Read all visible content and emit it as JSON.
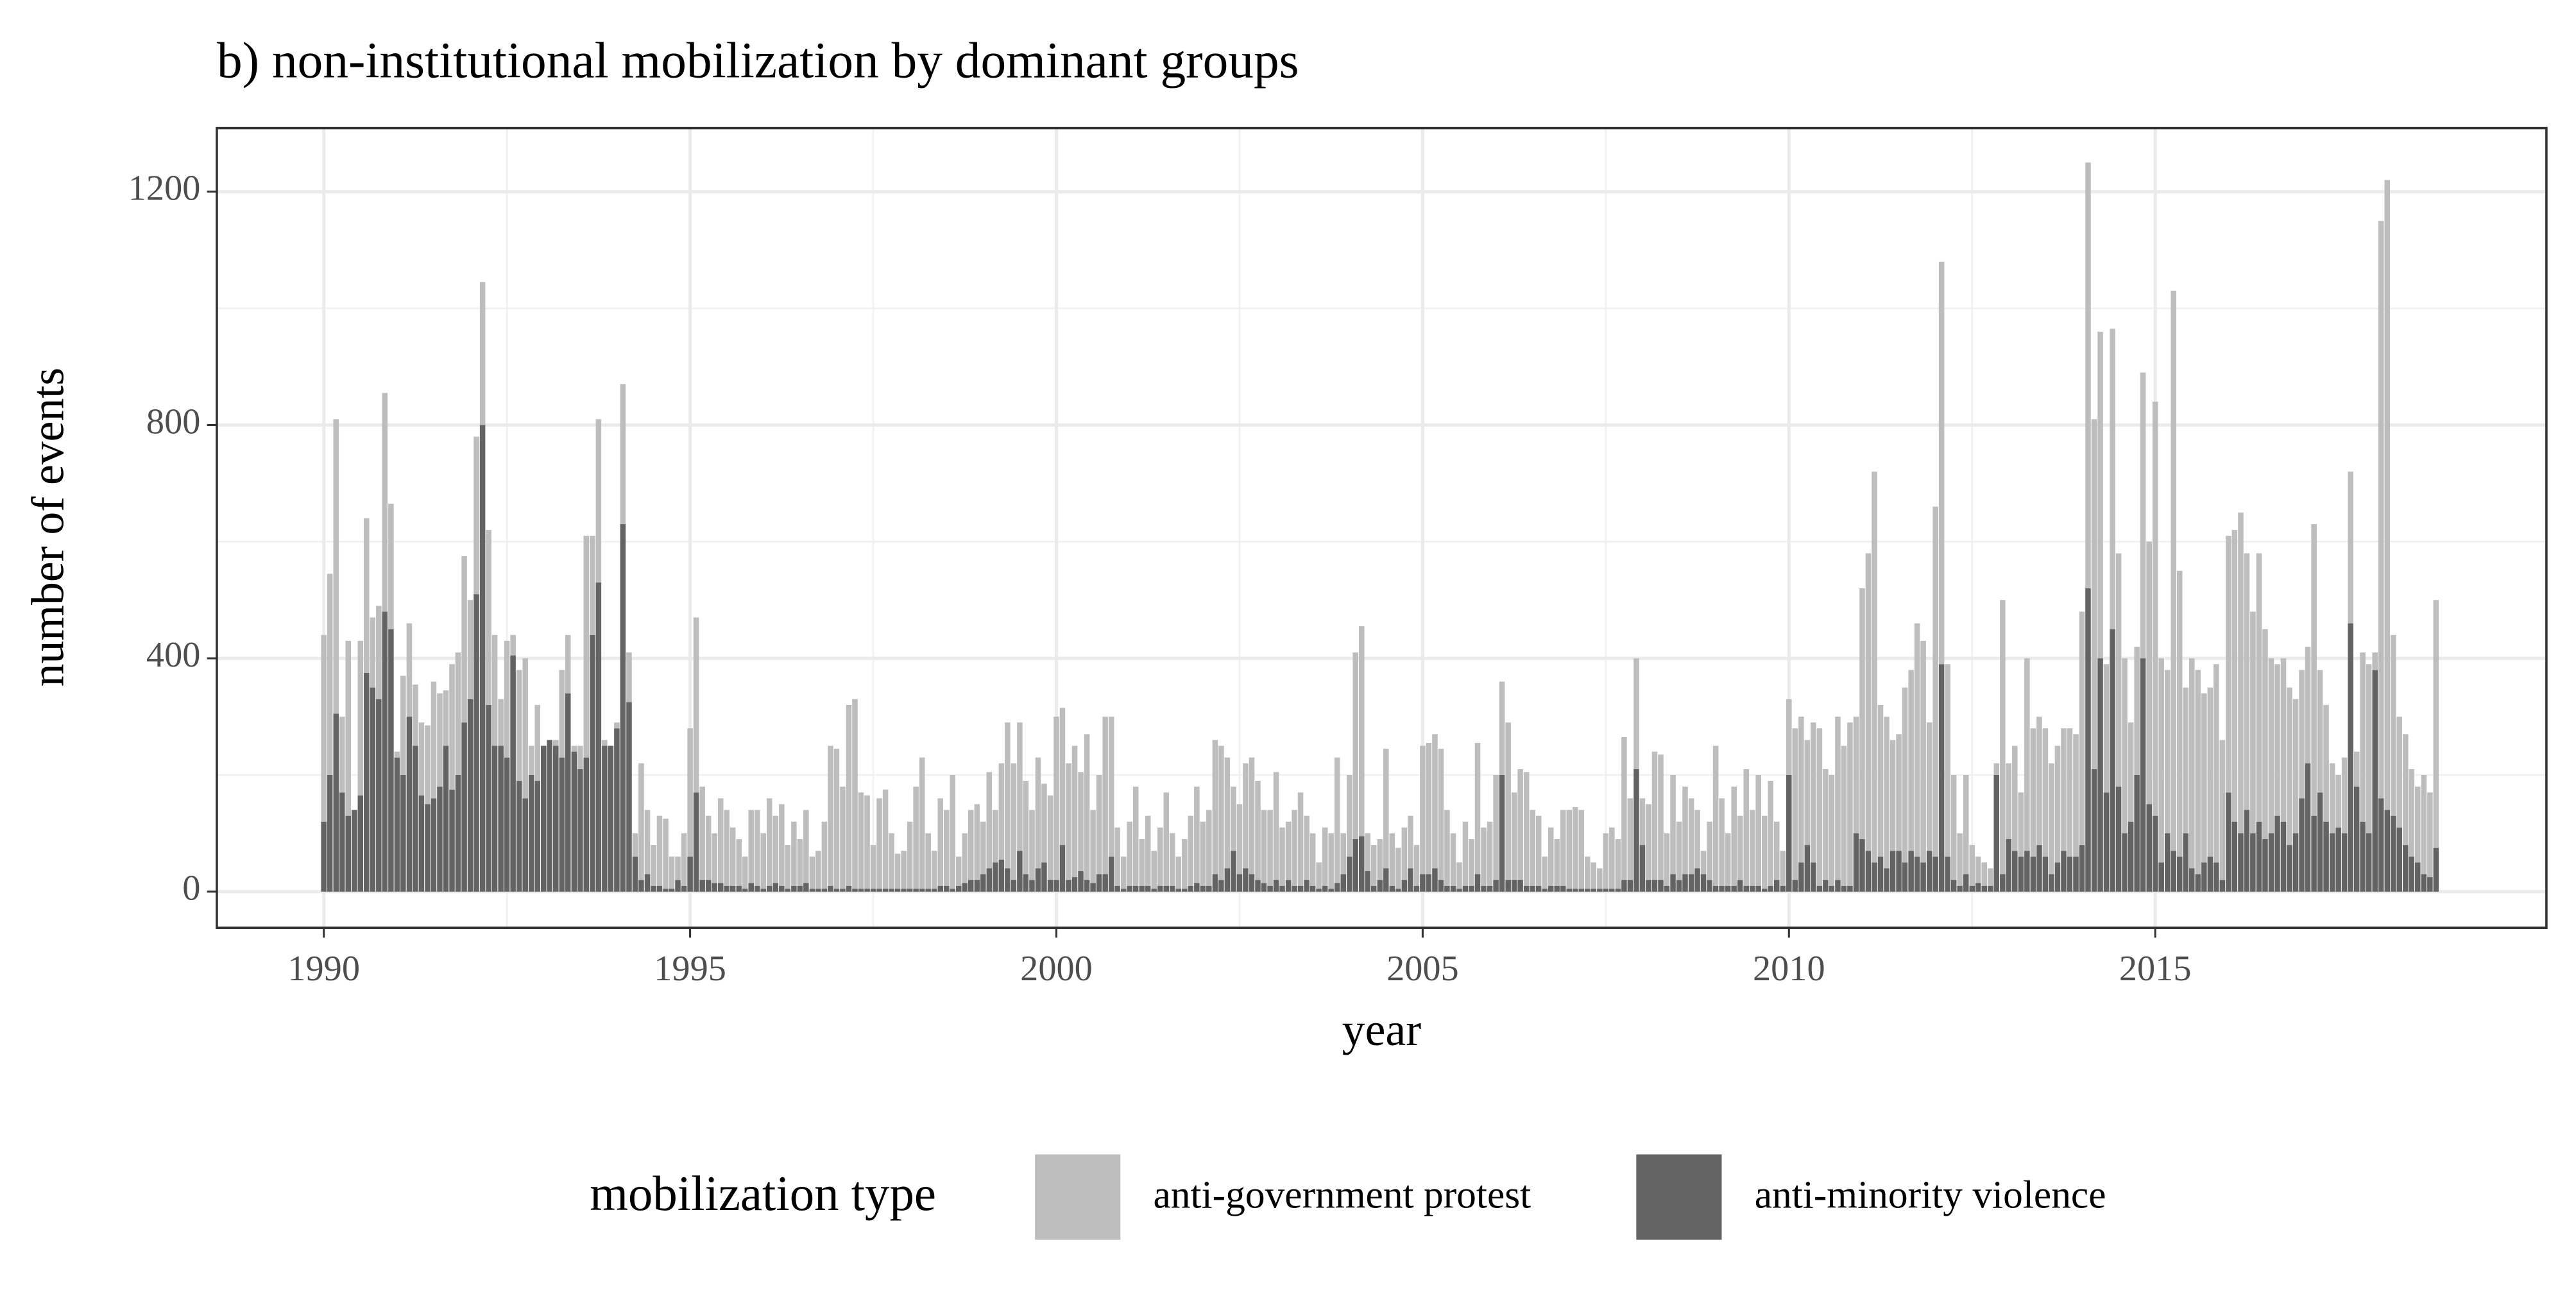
{
  "chart_data": {
    "type": "stacked_bar",
    "title": "b) non-institutional mobilization by dominant groups",
    "x_label": "year",
    "y_label": "number of events",
    "legend_title": "mobilization type",
    "legend": "bottom",
    "grid": true,
    "xlim": [
      1988.54,
      2020.34
    ],
    "xticks": [
      1990,
      1995,
      2000,
      2005,
      2010,
      2015
    ],
    "ylim": [
      -62,
      1309
    ],
    "yticks": [
      0,
      400,
      800,
      1200
    ],
    "x": [
      1990,
      1990.083,
      1990.167,
      1990.25,
      1990.333,
      1990.417,
      1990.5,
      1990.583,
      1990.667,
      1990.75,
      1990.833,
      1990.917,
      1991,
      1991.083,
      1991.167,
      1991.25,
      1991.333,
      1991.417,
      1991.5,
      1991.583,
      1991.667,
      1991.75,
      1991.833,
      1991.917,
      1992,
      1992.083,
      1992.167,
      1992.25,
      1992.333,
      1992.417,
      1992.5,
      1992.583,
      1992.667,
      1992.75,
      1992.833,
      1992.917,
      1993,
      1993.083,
      1993.167,
      1993.25,
      1993.333,
      1993.417,
      1993.5,
      1993.583,
      1993.667,
      1993.75,
      1993.833,
      1993.917,
      1994,
      1994.083,
      1994.167,
      1994.25,
      1994.333,
      1994.417,
      1994.5,
      1994.583,
      1994.667,
      1994.75,
      1994.833,
      1994.917,
      1995,
      1995.083,
      1995.167,
      1995.25,
      1995.333,
      1995.417,
      1995.5,
      1995.583,
      1995.667,
      1995.75,
      1995.833,
      1995.917,
      1996,
      1996.083,
      1996.167,
      1996.25,
      1996.333,
      1996.417,
      1996.5,
      1996.583,
      1996.667,
      1996.75,
      1996.833,
      1996.917,
      1997,
      1997.083,
      1997.167,
      1997.25,
      1997.333,
      1997.417,
      1997.5,
      1997.583,
      1997.667,
      1997.75,
      1997.833,
      1997.917,
      1998,
      1998.083,
      1998.167,
      1998.25,
      1998.333,
      1998.417,
      1998.5,
      1998.583,
      1998.667,
      1998.75,
      1998.833,
      1998.917,
      1999,
      1999.083,
      1999.167,
      1999.25,
      1999.333,
      1999.417,
      1999.5,
      1999.583,
      1999.667,
      1999.75,
      1999.833,
      1999.917,
      2000,
      2000.083,
      2000.167,
      2000.25,
      2000.333,
      2000.417,
      2000.5,
      2000.583,
      2000.667,
      2000.75,
      2000.833,
      2000.917,
      2001,
      2001.083,
      2001.167,
      2001.25,
      2001.333,
      2001.417,
      2001.5,
      2001.583,
      2001.667,
      2001.75,
      2001.833,
      2001.917,
      2002,
      2002.083,
      2002.167,
      2002.25,
      2002.333,
      2002.417,
      2002.5,
      2002.583,
      2002.667,
      2002.75,
      2002.833,
      2002.917,
      2003,
      2003.083,
      2003.167,
      2003.25,
      2003.333,
      2003.417,
      2003.5,
      2003.583,
      2003.667,
      2003.75,
      2003.833,
      2003.917,
      2004,
      2004.083,
      2004.167,
      2004.25,
      2004.333,
      2004.417,
      2004.5,
      2004.583,
      2004.667,
      2004.75,
      2004.833,
      2004.917,
      2005,
      2005.083,
      2005.167,
      2005.25,
      2005.333,
      2005.417,
      2005.5,
      2005.583,
      2005.667,
      2005.75,
      2005.833,
      2005.917,
      2006,
      2006.083,
      2006.167,
      2006.25,
      2006.333,
      2006.417,
      2006.5,
      2006.583,
      2006.667,
      2006.75,
      2006.833,
      2006.917,
      2007,
      2007.083,
      2007.167,
      2007.25,
      2007.333,
      2007.417,
      2007.5,
      2007.583,
      2007.667,
      2007.75,
      2007.833,
      2007.917,
      2008,
      2008.083,
      2008.167,
      2008.25,
      2008.333,
      2008.417,
      2008.5,
      2008.583,
      2008.667,
      2008.75,
      2008.833,
      2008.917,
      2009,
      2009.083,
      2009.167,
      2009.25,
      2009.333,
      2009.417,
      2009.5,
      2009.583,
      2009.667,
      2009.75,
      2009.833,
      2009.917,
      2010,
      2010.083,
      2010.167,
      2010.25,
      2010.333,
      2010.417,
      2010.5,
      2010.583,
      2010.667,
      2010.75,
      2010.833,
      2010.917,
      2011,
      2011.083,
      2011.167,
      2011.25,
      2011.333,
      2011.417,
      2011.5,
      2011.583,
      2011.667,
      2011.75,
      2011.833,
      2011.917,
      2012,
      2012.083,
      2012.167,
      2012.25,
      2012.333,
      2012.417,
      2012.5,
      2012.583,
      2012.667,
      2012.75,
      2012.833,
      2012.917,
      2013,
      2013.083,
      2013.167,
      2013.25,
      2013.333,
      2013.417,
      2013.5,
      2013.583,
      2013.667,
      2013.75,
      2013.833,
      2013.917,
      2014,
      2014.083,
      2014.167,
      2014.25,
      2014.333,
      2014.417,
      2014.5,
      2014.583,
      2014.667,
      2014.75,
      2014.833,
      2014.917,
      2015,
      2015.083,
      2015.167,
      2015.25,
      2015.333,
      2015.417,
      2015.5,
      2015.583,
      2015.667,
      2015.75,
      2015.833,
      2015.917,
      2016,
      2016.083,
      2016.167,
      2016.25,
      2016.333,
      2016.417,
      2016.5,
      2016.583,
      2016.667,
      2016.75,
      2016.833,
      2016.917,
      2017,
      2017.083,
      2017.167,
      2017.25,
      2017.333,
      2017.417,
      2017.5,
      2017.583,
      2017.667,
      2017.75,
      2017.833,
      2017.917,
      2018,
      2018.083,
      2018.167,
      2018.25,
      2018.333,
      2018.417,
      2018.5,
      2018.583,
      2018.667,
      2018.75,
      2018.833
    ],
    "series": [
      {
        "name": "anti-government protest",
        "color": "#bdbdbd",
        "values": [
          320,
          345,
          505,
          130,
          300,
          0,
          265,
          265,
          120,
          160,
          375,
          215,
          10,
          170,
          160,
          105,
          125,
          135,
          200,
          160,
          95,
          215,
          210,
          285,
          170,
          270,
          245,
          300,
          190,
          80,
          200,
          35,
          190,
          240,
          50,
          130,
          0,
          0,
          10,
          150,
          100,
          10,
          40,
          380,
          170,
          280,
          10,
          0,
          10,
          240,
          85,
          40,
          200,
          110,
          70,
          120,
          120,
          55,
          40,
          90,
          220,
          300,
          160,
          110,
          85,
          145,
          130,
          100,
          80,
          55,
          125,
          130,
          95,
          150,
          115,
          140,
          75,
          110,
          80,
          125,
          55,
          65,
          115,
          240,
          240,
          175,
          310,
          325,
          165,
          160,
          75,
          155,
          170,
          95,
          60,
          65,
          115,
          175,
          225,
          95,
          65,
          150,
          130,
          195,
          50,
          85,
          120,
          130,
          90,
          165,
          90,
          165,
          250,
          200,
          220,
          160,
          120,
          190,
          135,
          145,
          280,
          235,
          200,
          225,
          170,
          250,
          125,
          170,
          270,
          240,
          100,
          55,
          110,
          170,
          80,
          120,
          65,
          100,
          160,
          90,
          55,
          85,
          120,
          165,
          110,
          130,
          230,
          230,
          190,
          110,
          120,
          180,
          200,
          170,
          125,
          130,
          185,
          100,
          100,
          130,
          160,
          110,
          90,
          45,
          100,
          95,
          215,
          70,
          140,
          320,
          360,
          65,
          70,
          70,
          205,
          90,
          70,
          90,
          90,
          70,
          220,
          225,
          230,
          225,
          130,
          90,
          45,
          110,
          80,
          225,
          100,
          110,
          180,
          160,
          270,
          150,
          190,
          195,
          130,
          120,
          55,
          100,
          80,
          130,
          135,
          140,
          135,
          55,
          45,
          35,
          95,
          105,
          85,
          245,
          140,
          190,
          80,
          130,
          220,
          215,
          90,
          170,
          100,
          150,
          130,
          100,
          40,
          100,
          240,
          150,
          90,
          170,
          110,
          200,
          130,
          190,
          125,
          180,
          100,
          60,
          130,
          260,
          250,
          180,
          240,
          270,
          190,
          190,
          280,
          240,
          280,
          200,
          430,
          510,
          670,
          260,
          260,
          190,
          200,
          300,
          310,
          400,
          380,
          220,
          600,
          690,
          330,
          180,
          90,
          170,
          70,
          45,
          40,
          30,
          20,
          470,
          130,
          180,
          110,
          330,
          220,
          220,
          220,
          190,
          200,
          210,
          220,
          210,
          400,
          730,
          600,
          560,
          220,
          515,
          400,
          300,
          170,
          220,
          490,
          450,
          710,
          350,
          280,
          960,
          490,
          250,
          360,
          350,
          290,
          290,
          340,
          240,
          440,
          500,
          550,
          440,
          380,
          460,
          360,
          300,
          260,
          280,
          270,
          230,
          220,
          200,
          500,
          210,
          200,
          120,
          90,
          130,
          260,
          60,
          290,
          290,
          30,
          990,
          1080,
          310,
          190,
          190,
          150,
          130,
          170,
          145,
          425
        ]
      },
      {
        "name": "anti-minority violence",
        "color": "#636363",
        "values": [
          120,
          200,
          305,
          170,
          130,
          140,
          165,
          375,
          350,
          330,
          480,
          450,
          230,
          200,
          300,
          250,
          165,
          150,
          160,
          180,
          250,
          175,
          200,
          290,
          330,
          510,
          800,
          320,
          250,
          250,
          230,
          405,
          190,
          160,
          200,
          190,
          250,
          260,
          250,
          230,
          340,
          240,
          210,
          230,
          440,
          530,
          250,
          250,
          280,
          630,
          325,
          60,
          20,
          30,
          10,
          10,
          5,
          5,
          20,
          10,
          60,
          170,
          20,
          20,
          15,
          15,
          10,
          10,
          10,
          5,
          15,
          10,
          5,
          10,
          15,
          10,
          5,
          10,
          10,
          15,
          5,
          5,
          5,
          10,
          5,
          5,
          10,
          5,
          5,
          5,
          5,
          5,
          5,
          5,
          5,
          5,
          5,
          5,
          5,
          5,
          5,
          10,
          10,
          5,
          10,
          15,
          20,
          20,
          30,
          40,
          50,
          55,
          40,
          20,
          70,
          30,
          20,
          40,
          50,
          20,
          20,
          80,
          20,
          25,
          35,
          20,
          15,
          30,
          30,
          60,
          10,
          5,
          10,
          10,
          10,
          10,
          5,
          10,
          10,
          10,
          5,
          5,
          10,
          15,
          10,
          10,
          30,
          20,
          40,
          70,
          30,
          40,
          30,
          20,
          15,
          10,
          20,
          10,
          20,
          10,
          10,
          20,
          10,
          5,
          10,
          5,
          15,
          30,
          60,
          90,
          95,
          35,
          10,
          20,
          40,
          10,
          5,
          20,
          40,
          10,
          30,
          30,
          40,
          20,
          10,
          10,
          5,
          10,
          10,
          30,
          10,
          10,
          20,
          200,
          20,
          20,
          20,
          10,
          10,
          10,
          5,
          10,
          10,
          10,
          5,
          5,
          5,
          5,
          5,
          5,
          5,
          5,
          5,
          20,
          20,
          210,
          80,
          20,
          20,
          20,
          10,
          30,
          20,
          30,
          30,
          40,
          30,
          20,
          10,
          10,
          10,
          10,
          20,
          10,
          10,
          10,
          5,
          10,
          20,
          10,
          200,
          20,
          50,
          80,
          50,
          10,
          20,
          10,
          20,
          10,
          10,
          100,
          90,
          70,
          50,
          60,
          40,
          70,
          70,
          50,
          70,
          60,
          50,
          70,
          60,
          390,
          60,
          20,
          10,
          30,
          10,
          15,
          10,
          10,
          200,
          30,
          90,
          70,
          60,
          70,
          60,
          80,
          60,
          30,
          50,
          70,
          60,
          60,
          80,
          520,
          210,
          400,
          170,
          450,
          180,
          100,
          120,
          200,
          400,
          150,
          130,
          50,
          100,
          70,
          60,
          100,
          40,
          30,
          50,
          60,
          50,
          20,
          170,
          120,
          100,
          140,
          100,
          120,
          90,
          100,
          130,
          120,
          80,
          100,
          160,
          220,
          130,
          170,
          120,
          100,
          110,
          100,
          460,
          180,
          120,
          100,
          380,
          160,
          140,
          130,
          110,
          80,
          60,
          50,
          30,
          25,
          75
        ]
      }
    ]
  }
}
